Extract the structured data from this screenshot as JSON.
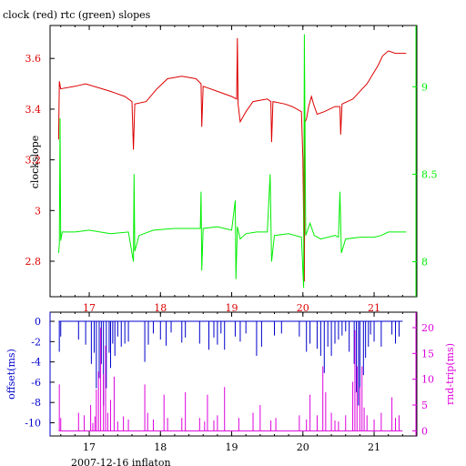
{
  "chart_data": [
    {
      "type": "line",
      "title": "clock (red) rtc (green) slopes",
      "ylabel": "clockslope",
      "ylim": [
        2.66,
        3.73
      ],
      "xlim": [
        16.45,
        21.6
      ],
      "x_ticks": [
        17,
        18,
        19,
        20,
        21
      ],
      "y_ticks": [
        2.8,
        3,
        3.2,
        3.4,
        3.6
      ],
      "y2lim": [
        7.8,
        9.35
      ],
      "y2_ticks": [
        8,
        8.5,
        9
      ],
      "series": [
        {
          "name": "clock",
          "axis": "left",
          "color": "#dd0000",
          "points": [
            [
              16.57,
              3.28
            ],
            [
              16.58,
              3.51
            ],
            [
              16.6,
              3.48
            ],
            [
              16.8,
              3.49
            ],
            [
              16.95,
              3.5
            ],
            [
              17.3,
              3.47
            ],
            [
              17.5,
              3.45
            ],
            [
              17.6,
              3.43
            ],
            [
              17.62,
              3.24
            ],
            [
              17.64,
              3.42
            ],
            [
              17.8,
              3.43
            ],
            [
              17.95,
              3.48
            ],
            [
              18.1,
              3.52
            ],
            [
              18.3,
              3.53
            ],
            [
              18.5,
              3.52
            ],
            [
              18.57,
              3.5
            ],
            [
              18.58,
              3.33
            ],
            [
              18.6,
              3.49
            ],
            [
              18.8,
              3.47
            ],
            [
              19.0,
              3.45
            ],
            [
              19.07,
              3.44
            ],
            [
              19.08,
              3.68
            ],
            [
              19.09,
              3.42
            ],
            [
              19.12,
              3.35
            ],
            [
              19.2,
              3.39
            ],
            [
              19.3,
              3.43
            ],
            [
              19.5,
              3.44
            ],
            [
              19.55,
              3.43
            ],
            [
              19.56,
              3.27
            ],
            [
              19.58,
              3.43
            ],
            [
              19.75,
              3.42
            ],
            [
              19.85,
              3.41
            ],
            [
              19.98,
              3.39
            ],
            [
              20.0,
              3.2
            ],
            [
              20.02,
              2.72
            ],
            [
              20.03,
              3.35
            ],
            [
              20.05,
              3.36
            ],
            [
              20.08,
              3.41
            ],
            [
              20.12,
              3.45
            ],
            [
              20.15,
              3.42
            ],
            [
              20.2,
              3.38
            ],
            [
              20.3,
              3.39
            ],
            [
              20.45,
              3.41
            ],
            [
              20.52,
              3.41
            ],
            [
              20.53,
              3.3
            ],
            [
              20.55,
              3.42
            ],
            [
              20.7,
              3.44
            ],
            [
              20.9,
              3.5
            ],
            [
              21.05,
              3.57
            ],
            [
              21.12,
              3.61
            ],
            [
              21.2,
              3.63
            ],
            [
              21.3,
              3.62
            ],
            [
              21.45,
              3.62
            ]
          ]
        },
        {
          "name": "rtc",
          "axis": "right",
          "color": "#00ee00",
          "points": [
            [
              16.57,
              8.05
            ],
            [
              16.58,
              8.1
            ],
            [
              16.59,
              8.82
            ],
            [
              16.6,
              8.12
            ],
            [
              16.62,
              8.17
            ],
            [
              16.8,
              8.17
            ],
            [
              17.0,
              8.18
            ],
            [
              17.3,
              8.16
            ],
            [
              17.55,
              8.17
            ],
            [
              17.62,
              8.0
            ],
            [
              17.63,
              8.5
            ],
            [
              17.64,
              8.06
            ],
            [
              17.7,
              8.15
            ],
            [
              17.9,
              8.18
            ],
            [
              18.2,
              8.19
            ],
            [
              18.5,
              8.19
            ],
            [
              18.56,
              8.19
            ],
            [
              18.57,
              8.4
            ],
            [
              18.58,
              7.95
            ],
            [
              18.6,
              8.19
            ],
            [
              18.8,
              8.2
            ],
            [
              19.0,
              8.18
            ],
            [
              19.05,
              8.35
            ],
            [
              19.06,
              7.9
            ],
            [
              19.08,
              8.2
            ],
            [
              19.12,
              8.13
            ],
            [
              19.2,
              8.16
            ],
            [
              19.35,
              8.17
            ],
            [
              19.5,
              8.17
            ],
            [
              19.54,
              8.5
            ],
            [
              19.56,
              8.0
            ],
            [
              19.6,
              8.15
            ],
            [
              19.8,
              8.16
            ],
            [
              19.98,
              8.14
            ],
            [
              20.01,
              7.85
            ],
            [
              20.02,
              9.3
            ],
            [
              20.04,
              8.15
            ],
            [
              20.1,
              8.22
            ],
            [
              20.16,
              8.15
            ],
            [
              20.25,
              8.13
            ],
            [
              20.45,
              8.15
            ],
            [
              20.5,
              8.14
            ],
            [
              20.52,
              8.4
            ],
            [
              20.54,
              8.05
            ],
            [
              20.6,
              8.13
            ],
            [
              20.8,
              8.14
            ],
            [
              21.0,
              8.14
            ],
            [
              21.1,
              8.15
            ],
            [
              21.2,
              8.17
            ],
            [
              21.45,
              8.17
            ]
          ]
        }
      ]
    },
    {
      "type": "bar",
      "xlabel": "2007-12-16 inflaton",
      "ylabel": "offset(ms)",
      "y2label": "rnd-trip(ms)",
      "ylim": [
        -11.3,
        0.9
      ],
      "xlim": [
        16.45,
        21.6
      ],
      "x_ticks": [
        17,
        18,
        19,
        20,
        21
      ],
      "y_ticks": [
        0,
        -2,
        -4,
        -6,
        -8,
        -10
      ],
      "y2lim": [
        -1,
        23
      ],
      "y2_ticks": [
        0,
        5,
        10,
        15,
        20
      ],
      "series": [
        {
          "name": "offset",
          "axis": "left",
          "color": "#0000cc",
          "baseline": 0,
          "points": [
            [
              16.58,
              -3.0
            ],
            [
              16.6,
              -1.5
            ],
            [
              16.85,
              -1.8
            ],
            [
              16.95,
              -2.3
            ],
            [
              17.03,
              -4.2
            ],
            [
              17.07,
              -3.1
            ],
            [
              17.1,
              -6.6
            ],
            [
              17.14,
              -5.6
            ],
            [
              17.17,
              -4.2
            ],
            [
              17.2,
              -8.3
            ],
            [
              17.24,
              -6.6
            ],
            [
              17.28,
              -3.1
            ],
            [
              17.3,
              -4.6
            ],
            [
              17.33,
              -2.2
            ],
            [
              17.36,
              -3.4
            ],
            [
              17.4,
              -1.5
            ],
            [
              17.45,
              -2.5
            ],
            [
              17.5,
              -2.2
            ],
            [
              17.55,
              -2.0
            ],
            [
              17.78,
              -4.0
            ],
            [
              17.83,
              -2.3
            ],
            [
              17.9,
              -1.2
            ],
            [
              18.0,
              -1.8
            ],
            [
              18.08,
              -2.4
            ],
            [
              18.15,
              -1.1
            ],
            [
              18.3,
              -2.1
            ],
            [
              18.35,
              -1.6
            ],
            [
              18.55,
              -2.2
            ],
            [
              18.68,
              -2.8
            ],
            [
              18.75,
              -1.6
            ],
            [
              18.8,
              -2.3
            ],
            [
              18.85,
              -1.2
            ],
            [
              18.9,
              -2.8
            ],
            [
              19.05,
              -1.5
            ],
            [
              19.12,
              -2.0
            ],
            [
              19.2,
              -1.2
            ],
            [
              19.35,
              -3.4
            ],
            [
              19.42,
              -2.5
            ],
            [
              19.6,
              -1.4
            ],
            [
              19.7,
              -1.2
            ],
            [
              19.95,
              -1.5
            ],
            [
              20.05,
              -3.0
            ],
            [
              20.1,
              -2.2
            ],
            [
              20.2,
              -2.7
            ],
            [
              20.25,
              -3.4
            ],
            [
              20.3,
              -5.1
            ],
            [
              20.35,
              -2.5
            ],
            [
              20.4,
              -3.4
            ],
            [
              20.45,
              -2.2
            ],
            [
              20.5,
              -1.8
            ],
            [
              20.55,
              -1.4
            ],
            [
              20.6,
              -1.0
            ],
            [
              20.65,
              -3.0
            ],
            [
              20.72,
              -4.2
            ],
            [
              20.75,
              -7.0
            ],
            [
              20.78,
              -8.3
            ],
            [
              20.8,
              -6.6
            ],
            [
              20.85,
              -5.3
            ],
            [
              20.88,
              -3.6
            ],
            [
              20.92,
              -2.5
            ],
            [
              20.95,
              -1.3
            ],
            [
              21.0,
              -2.0
            ],
            [
              21.1,
              -2.5
            ],
            [
              21.25,
              -1.3
            ],
            [
              21.3,
              -2.2
            ],
            [
              21.35,
              -1.5
            ]
          ]
        },
        {
          "name": "rnd-trip",
          "axis": "right",
          "color": "#dd00dd",
          "baseline": 0,
          "points": [
            [
              16.58,
              9.0
            ],
            [
              16.6,
              2.5
            ],
            [
              16.85,
              3.5
            ],
            [
              16.93,
              3.0
            ],
            [
              17.02,
              5.0
            ],
            [
              17.05,
              1.5
            ],
            [
              17.08,
              2.8
            ],
            [
              17.1,
              8.0
            ],
            [
              17.13,
              11.5
            ],
            [
              17.16,
              20.0
            ],
            [
              17.2,
              11.0
            ],
            [
              17.23,
              16.5
            ],
            [
              17.26,
              3.5
            ],
            [
              17.3,
              6.0
            ],
            [
              17.35,
              10.5
            ],
            [
              17.4,
              1.8
            ],
            [
              17.48,
              2.8
            ],
            [
              17.55,
              2.2
            ],
            [
              17.78,
              9.0
            ],
            [
              17.82,
              3.5
            ],
            [
              17.9,
              2.2
            ],
            [
              18.05,
              7.0
            ],
            [
              18.1,
              2.5
            ],
            [
              18.3,
              2.5
            ],
            [
              18.35,
              7.5
            ],
            [
              18.55,
              2.5
            ],
            [
              18.62,
              1.8
            ],
            [
              18.66,
              7.0
            ],
            [
              18.75,
              2.0
            ],
            [
              18.8,
              3.0
            ],
            [
              18.9,
              8.5
            ],
            [
              19.1,
              2.5
            ],
            [
              19.3,
              3.5
            ],
            [
              19.4,
              5.0
            ],
            [
              19.55,
              2.0
            ],
            [
              19.62,
              2.5
            ],
            [
              19.95,
              3.0
            ],
            [
              20.05,
              2.2
            ],
            [
              20.1,
              7.0
            ],
            [
              20.2,
              3.0
            ],
            [
              20.28,
              12.5
            ],
            [
              20.32,
              7.5
            ],
            [
              20.4,
              3.5
            ],
            [
              20.45,
              2.0
            ],
            [
              20.5,
              1.8
            ],
            [
              20.6,
              3.0
            ],
            [
              20.7,
              9.5
            ],
            [
              20.73,
              19.5
            ],
            [
              20.76,
              12.5
            ],
            [
              20.8,
              8.5
            ],
            [
              20.83,
              12.5
            ],
            [
              20.86,
              4.5
            ],
            [
              20.9,
              3.0
            ],
            [
              21.0,
              2.2
            ],
            [
              21.1,
              3.5
            ],
            [
              21.25,
              6.5
            ],
            [
              21.3,
              2.5
            ],
            [
              21.35,
              3.0
            ]
          ]
        }
      ]
    }
  ]
}
